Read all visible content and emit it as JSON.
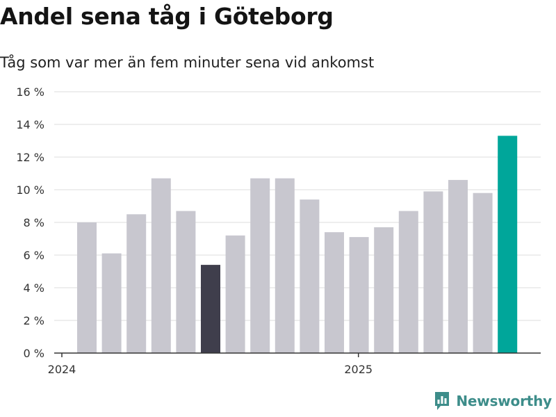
{
  "title": "Andel sena tåg i Göteborg",
  "subtitle": "Tåg som var mer än fem minuter sena vid ankomst",
  "brand": {
    "name": "Newsworthy",
    "color": "#3d8d8a",
    "icon": "bar-chart-logo-icon"
  },
  "colors": {
    "bar_default": "#c8c7cf",
    "bar_dark": "#3f3e4c",
    "bar_highlight": "#00a69a",
    "grid": "#dcdcdc",
    "axis": "#333333"
  },
  "chart_data": {
    "type": "bar",
    "ylim": [
      0,
      16
    ],
    "yticks": [
      0,
      2,
      4,
      6,
      8,
      10,
      12,
      14,
      16
    ],
    "ytick_labels": [
      "0 %",
      "2 %",
      "4 %",
      "6 %",
      "8 %",
      "10 %",
      "12 %",
      "14 %",
      "16 %"
    ],
    "xtick_labels": [
      {
        "label": "2024",
        "index": 0
      },
      {
        "label": "2025",
        "index": 12
      }
    ],
    "grid": true,
    "xlabel": "",
    "ylabel": "",
    "values": [
      8.0,
      6.1,
      8.5,
      10.7,
      8.7,
      5.4,
      7.2,
      10.7,
      10.7,
      9.4,
      7.4,
      7.1,
      7.7,
      8.7,
      9.9,
      10.6,
      9.8,
      13.3
    ],
    "bar_styles": [
      "default",
      "default",
      "default",
      "default",
      "default",
      "dark",
      "default",
      "default",
      "default",
      "default",
      "default",
      "default",
      "default",
      "default",
      "default",
      "default",
      "default",
      "highlight"
    ]
  }
}
